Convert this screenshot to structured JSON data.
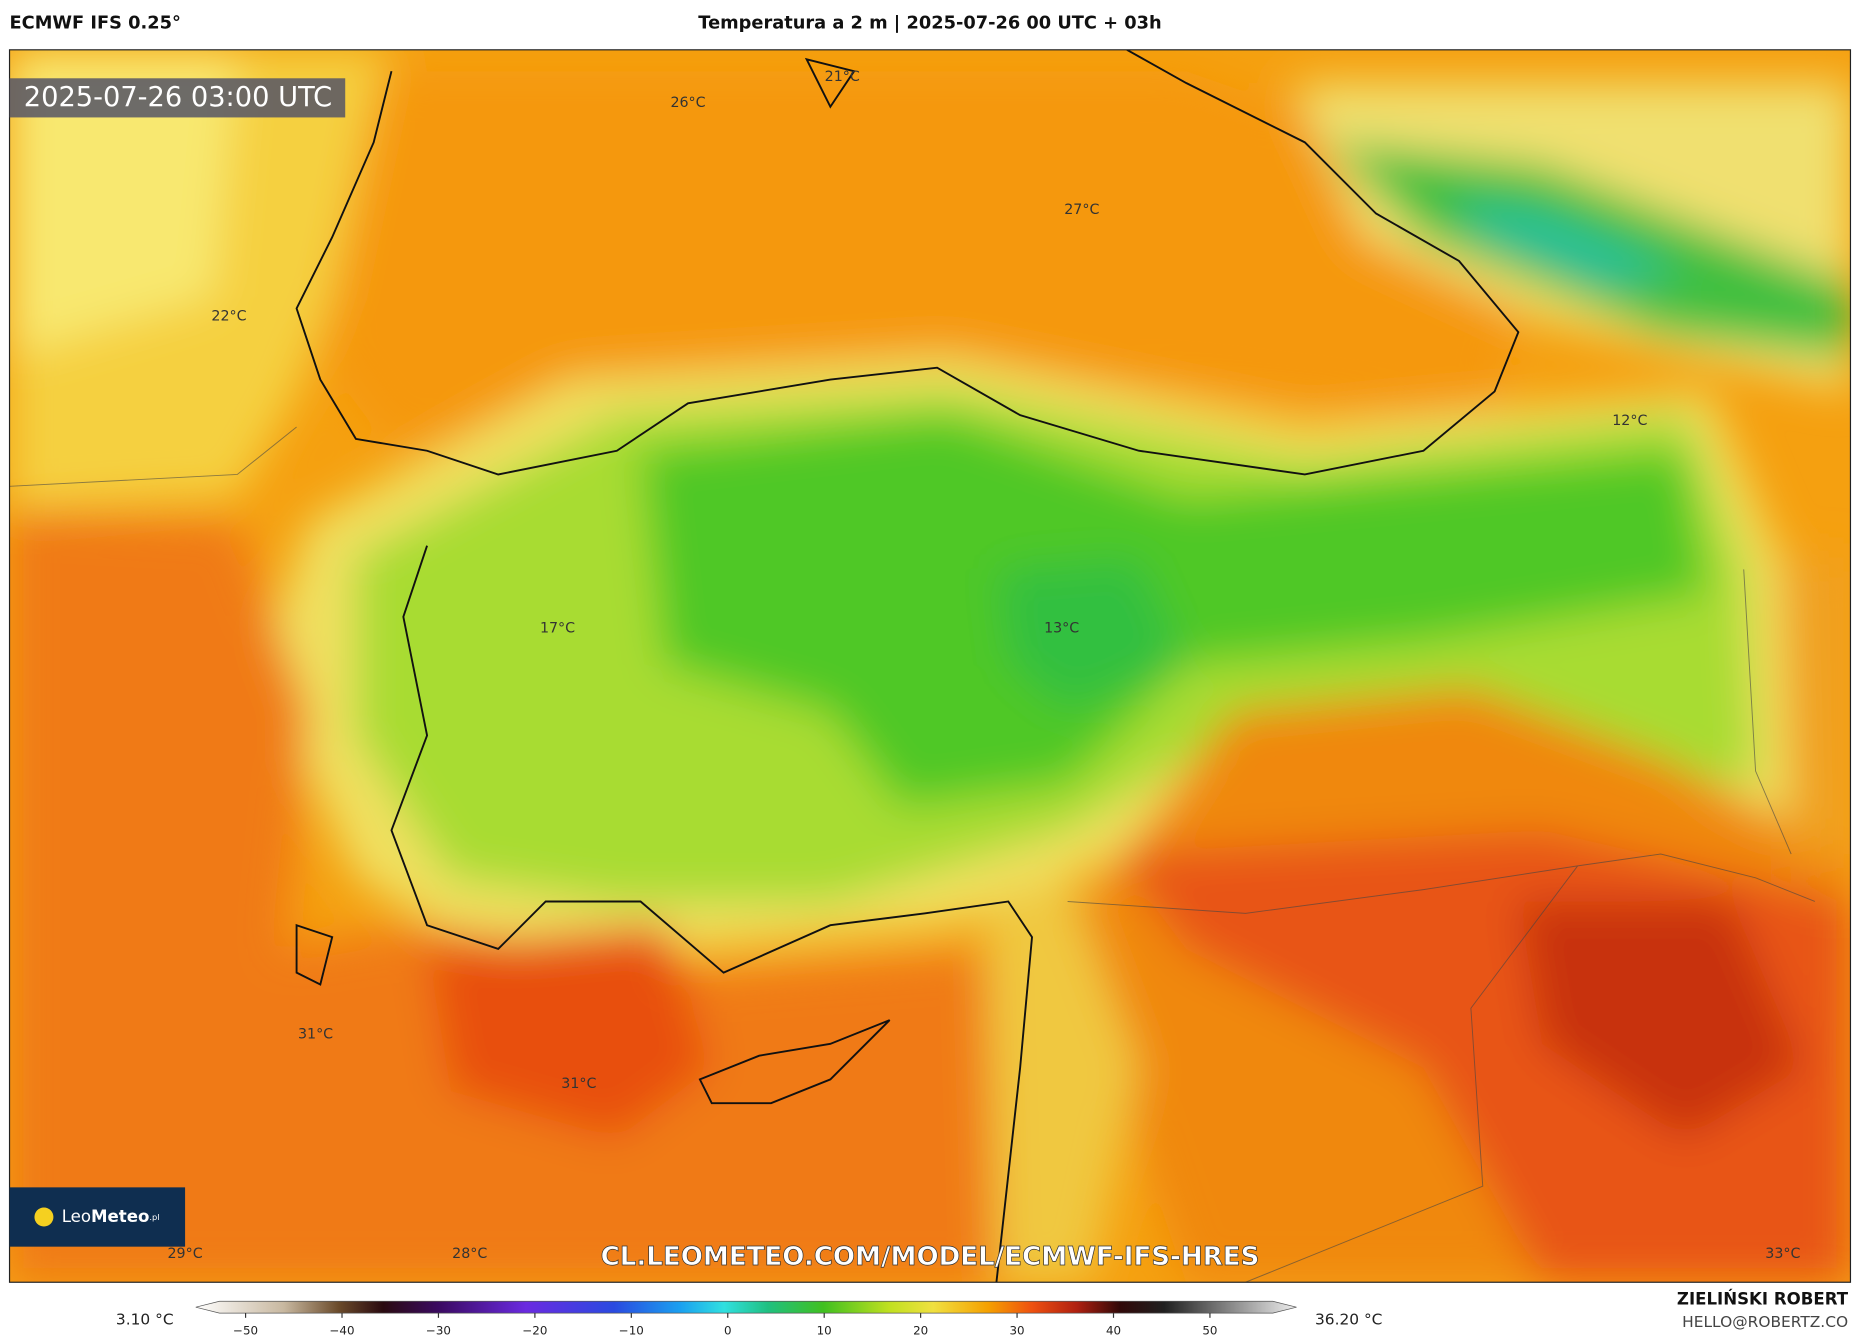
{
  "header": {
    "model": "ECMWF IFS 0.25°",
    "title": "Temperatura a 2 m | 2025-07-26 00 UTC + 03h"
  },
  "map": {
    "timestamp": "2025-07-26 03:00 UTC",
    "labels": [
      "21°C",
      "26°C",
      "27°C",
      "22°C",
      "12°C",
      "17°C",
      "13°C",
      "31°C",
      "31°C",
      "28°C",
      "29°C",
      "33°C"
    ],
    "watermark": "CL.LEOMETEO.COM/MODEL/ECMWF-IFS-HRES",
    "logo": {
      "name": "Leo",
      "name_bold": "Meteo",
      "suffix": ".pl"
    }
  },
  "colorbar": {
    "min_label": "3.10 °C",
    "max_label": "36.20 °C",
    "ticks": [
      "−50",
      "−40",
      "−30",
      "−20",
      "−10",
      "0",
      "10",
      "20",
      "30",
      "40",
      "50"
    ]
  },
  "footer": {
    "author": "ZIELIŃSKI ROBERT",
    "email": "HELLO@ROBERTZ.CO"
  }
}
